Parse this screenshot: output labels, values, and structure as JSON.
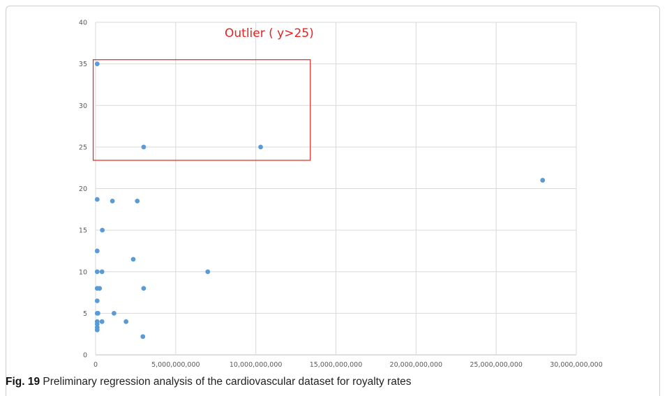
{
  "chart_data": {
    "type": "scatter",
    "xlim": [
      0,
      30000000000
    ],
    "ylim": [
      0,
      40
    ],
    "x_ticks": [
      "0",
      "5,000,000,000",
      "10,000,000,000",
      "15,000,000,000",
      "20,000,000,000",
      "25,000,000,000",
      "30,000,000,000"
    ],
    "y_ticks": [
      "0",
      "5",
      "10",
      "15",
      "20",
      "25",
      "30",
      "35",
      "40"
    ],
    "grid": "vertical and horizontal major gridlines",
    "point_color": "#5b9bd5",
    "annotation": {
      "text": "Outlier ( y>25)",
      "color": "#e8211f",
      "region": {
        "x_from": -150000000,
        "x_to": 13400000000,
        "y_from": 23.4,
        "y_to": 35.5
      }
    },
    "points": [
      {
        "x": 100000000,
        "y": 35
      },
      {
        "x": 3000000000,
        "y": 25
      },
      {
        "x": 10300000000,
        "y": 25
      },
      {
        "x": 27900000000,
        "y": 21
      },
      {
        "x": 100000000,
        "y": 18.7
      },
      {
        "x": 1050000000,
        "y": 18.5
      },
      {
        "x": 2600000000,
        "y": 18.5
      },
      {
        "x": 420000000,
        "y": 15
      },
      {
        "x": 100000000,
        "y": 12.5
      },
      {
        "x": 2350000000,
        "y": 11.5
      },
      {
        "x": 100000000,
        "y": 10
      },
      {
        "x": 400000000,
        "y": 10
      },
      {
        "x": 7000000000,
        "y": 10
      },
      {
        "x": 100000000,
        "y": 8
      },
      {
        "x": 250000000,
        "y": 8
      },
      {
        "x": 3000000000,
        "y": 8
      },
      {
        "x": 100000000,
        "y": 6.5
      },
      {
        "x": 100000000,
        "y": 5
      },
      {
        "x": 150000000,
        "y": 5
      },
      {
        "x": 1150000000,
        "y": 5
      },
      {
        "x": 100000000,
        "y": 4
      },
      {
        "x": 400000000,
        "y": 4
      },
      {
        "x": 1900000000,
        "y": 4
      },
      {
        "x": 100000000,
        "y": 3.7
      },
      {
        "x": 100000000,
        "y": 3.3
      },
      {
        "x": 100000000,
        "y": 3
      },
      {
        "x": 2950000000,
        "y": 2.2
      }
    ]
  },
  "caption": {
    "label": "Fig. 19",
    "text": " Preliminary regression analysis of the cardiovascular dataset for royalty rates"
  }
}
